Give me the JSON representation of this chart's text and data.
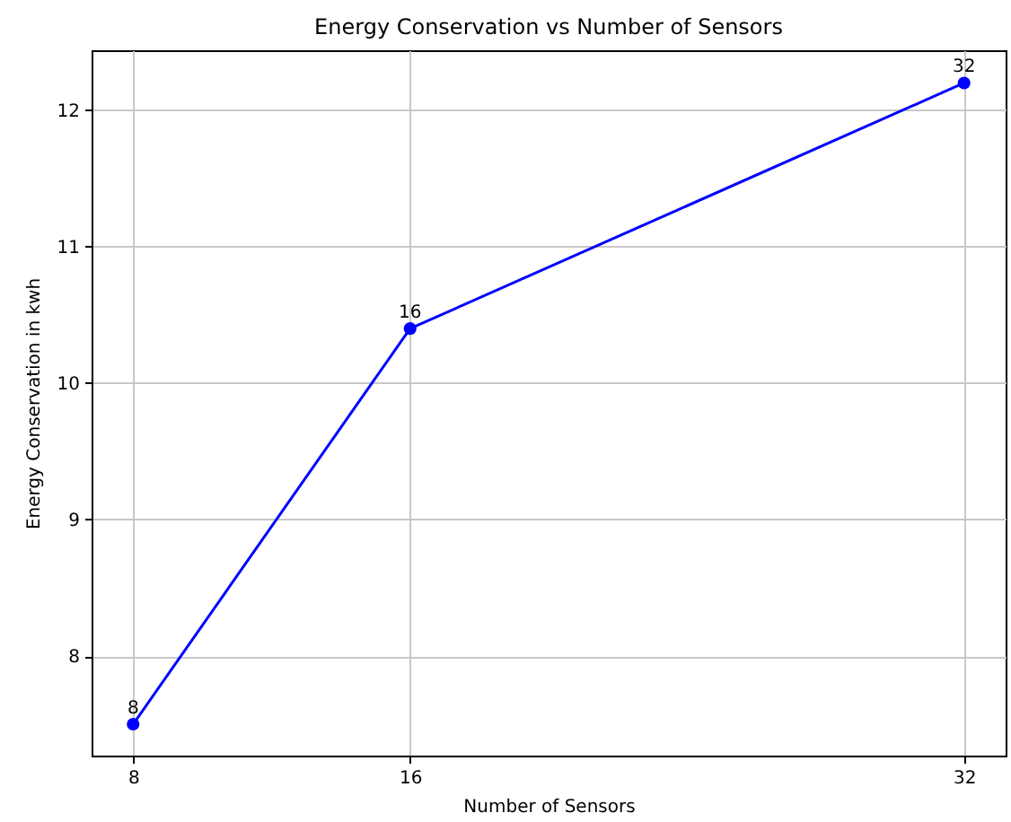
{
  "chart_data": {
    "type": "line",
    "title": "Energy Conservation vs Number of Sensors",
    "xlabel": "Number of Sensors",
    "ylabel": "Energy Conservation in kwh",
    "x": [
      8,
      16,
      32
    ],
    "series": [
      {
        "color": "#0000ff",
        "values": [
          7.5,
          10.4,
          12.2
        ]
      }
    ],
    "xlim": [
      6.8,
      33.2
    ],
    "ylim": [
      7.27,
      12.44
    ],
    "xticks": [
      8,
      16,
      32
    ],
    "yticks": [
      8,
      9,
      10,
      11,
      12
    ],
    "grid": true,
    "marker": "circle",
    "line_style": "solid",
    "annotations": [
      {
        "text": "8",
        "x": 8,
        "y": 7.5
      },
      {
        "text": "16",
        "x": 16,
        "y": 10.4
      },
      {
        "text": "32",
        "x": 32,
        "y": 12.2
      }
    ]
  }
}
